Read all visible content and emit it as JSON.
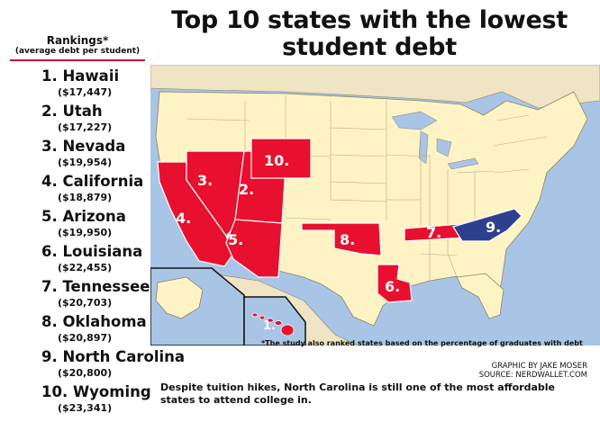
{
  "title": {
    "line1": "Top 10 states with the lowest",
    "line2": "student debt"
  },
  "rankings": {
    "header": "Rankings*",
    "subheader": "(average debt per student)",
    "items": [
      {
        "name": "1. Hawaii",
        "debt": "($17,447)"
      },
      {
        "name": "2. Utah",
        "debt": "($17,227)"
      },
      {
        "name": "3. Nevada",
        "debt": "($19,954)"
      },
      {
        "name": "4. California",
        "debt": "($18,879)"
      },
      {
        "name": "5. Arizona",
        "debt": "($19,950)"
      },
      {
        "name": "6. Louisiana",
        "debt": "($22,455)"
      },
      {
        "name": "7. Tennessee",
        "debt": "($20,703)"
      },
      {
        "name": "8. Oklahoma",
        "debt": "($20,897)"
      },
      {
        "name": "9. North Carolina",
        "debt": "($20,800)"
      },
      {
        "name": "10. Wyoming",
        "debt": "($23,341)"
      }
    ]
  },
  "map": {
    "labels": {
      "hawaii": "1.",
      "utah": "2.",
      "nevada": "3.",
      "california": "4.",
      "arizona": "5.",
      "louisiana": "6.",
      "tennessee": "7.",
      "oklahoma": "8.",
      "north_carolina": "9.",
      "wyoming": "10."
    },
    "colors": {
      "highlight_red": "#e8102e",
      "highlight_blue": "#2e3f8f",
      "land": "#fdf3c4",
      "water": "#a9c5e6",
      "neighbor_land": "#efe4c3",
      "border": "#8a7f6a"
    }
  },
  "footnote": "*The study also ranked states based on the percentage of graduates with debt",
  "credit": {
    "graphic": "GRAPHIC BY JAKE MOSER",
    "source": "SOURCE: NERDWALLET.COM"
  },
  "caption": "Despite tuition hikes, North Carolina is still one of the most affordable states to attend college in."
}
